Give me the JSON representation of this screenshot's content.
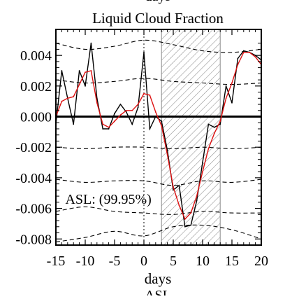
{
  "top_partial_label": "days",
  "bottom_partial_label": "ASL",
  "chart_data": {
    "type": "line",
    "title": "Liquid Cloud Fraction",
    "xlabel": "days",
    "ylabel": "",
    "xlim": [
      -15,
      20
    ],
    "ylim": [
      -0.0084,
      0.0057
    ],
    "x_ticks": [
      -15,
      -10,
      -5,
      0,
      5,
      10,
      15,
      20
    ],
    "x_tick_labels": [
      "-15",
      "-10",
      "-5",
      "0",
      "5",
      "10",
      "15",
      "20"
    ],
    "y_ticks": [
      0.004,
      0.002,
      0.0,
      -0.002,
      -0.004,
      -0.006,
      -0.008
    ],
    "y_tick_labels": [
      "0.004",
      "0.002",
      "0.000",
      "-0.002",
      "-0.004",
      "-0.006",
      "-0.008"
    ],
    "annotation": "ASL: (99.95%)",
    "hatched_region": [
      3,
      13
    ],
    "vertical_reference_x": 0,
    "zero_line": 0,
    "series": [
      {
        "role": "observed",
        "color": "#000000",
        "x": [
          -15,
          -14,
          -13,
          -12,
          -11,
          -10,
          -9,
          -8,
          -7,
          -6,
          -5,
          -4,
          -3,
          -2,
          -1,
          0,
          1,
          2,
          3,
          4,
          5,
          6,
          7,
          8,
          9,
          10,
          11,
          12,
          13,
          14,
          15,
          16,
          17,
          18,
          19,
          20
        ],
        "y": [
          -0.0005,
          0.003,
          0.0012,
          -0.0005,
          0.003,
          0.002,
          0.0048,
          0.0012,
          -0.0008,
          -0.0008,
          0.0002,
          0.0008,
          0.0003,
          -0.0005,
          0.0006,
          0.0042,
          -0.0008,
          0.0,
          -0.0003,
          -0.0022,
          -0.0048,
          -0.0045,
          -0.0072,
          -0.0071,
          -0.0055,
          -0.003,
          -0.0005,
          -0.0007,
          -0.0005,
          0.002,
          0.0009,
          0.0038,
          0.0043,
          0.0042,
          0.004,
          0.0037
        ]
      },
      {
        "role": "smoothed",
        "color": "#dd1111",
        "x": [
          -15,
          -14,
          -13,
          -12,
          -11,
          -10,
          -9,
          -8,
          -7,
          -6,
          -5,
          -4,
          -3,
          -2,
          -1,
          0,
          1,
          2,
          3,
          4,
          5,
          6,
          7,
          8,
          9,
          10,
          11,
          12,
          13,
          14,
          15,
          16,
          17,
          18,
          19,
          20
        ],
        "y": [
          0.0,
          0.001,
          0.0012,
          0.0013,
          0.0021,
          0.0029,
          0.003,
          0.0009,
          -0.0005,
          -0.0007,
          -0.0003,
          0.0001,
          0.0004,
          0.0004,
          0.0008,
          0.0015,
          0.0014,
          0.0003,
          -0.0006,
          -0.0025,
          -0.0046,
          -0.0058,
          -0.0067,
          -0.0063,
          -0.0052,
          -0.0036,
          -0.0021,
          -0.0011,
          -0.0003,
          0.0012,
          0.0022,
          0.0034,
          0.0042,
          0.0042,
          0.0039,
          0.0034
        ]
      }
    ],
    "significance_bounds": [
      {
        "x": [
          -15,
          -10,
          -5,
          0,
          5,
          10,
          15,
          20
        ],
        "y": [
          0.0048,
          0.0044,
          0.0046,
          0.005,
          0.0047,
          0.0043,
          0.0042,
          0.0044
        ]
      },
      {
        "x": [
          -15,
          -10,
          -5,
          0,
          5,
          10,
          15,
          20
        ],
        "y": [
          0.0024,
          0.0022,
          0.0023,
          0.0025,
          0.0023,
          0.0022,
          0.0021,
          0.0022
        ]
      },
      {
        "x": [
          -15,
          -10,
          -5,
          0,
          5,
          10,
          15,
          20
        ],
        "y": [
          -0.002,
          -0.0021,
          -0.002,
          -0.002,
          -0.0021,
          -0.002,
          -0.0021,
          -0.002
        ]
      },
      {
        "x": [
          -15,
          -10,
          -5,
          0,
          5,
          10,
          15,
          20
        ],
        "y": [
          -0.0041,
          -0.0043,
          -0.0042,
          -0.0042,
          -0.0045,
          -0.0042,
          -0.0043,
          -0.0041
        ]
      },
      {
        "x": [
          -15,
          -10,
          -5,
          0,
          5,
          10,
          15,
          20
        ],
        "y": [
          -0.0062,
          -0.0059,
          -0.0062,
          -0.0063,
          -0.0064,
          -0.0062,
          -0.0063,
          -0.0063
        ]
      },
      {
        "x": [
          -15,
          -10,
          -5,
          0,
          5,
          10,
          15,
          20
        ],
        "y": [
          -0.0082,
          -0.0079,
          -0.0075,
          -0.0078,
          -0.0072,
          -0.0071,
          -0.0074,
          -0.008
        ]
      }
    ]
  }
}
